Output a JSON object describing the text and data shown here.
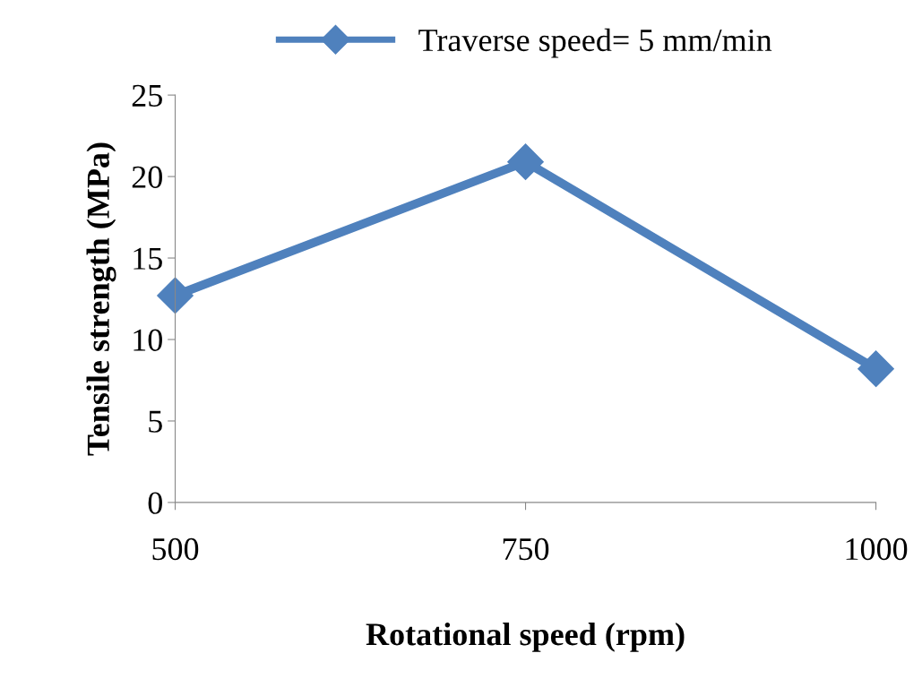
{
  "chart_data": {
    "type": "line",
    "xlabel": "Rotational speed (rpm)",
    "ylabel": "Tensile strength (MPa)",
    "categories": [
      "500",
      "750",
      "1000"
    ],
    "series": [
      {
        "name": "Traverse speed= 5 mm/min",
        "color": "#4f81bd",
        "values": [
          12.7,
          20.9,
          8.2
        ]
      }
    ],
    "ylim": [
      0,
      25
    ],
    "yticks": [
      0,
      5,
      10,
      15,
      20,
      25
    ],
    "grid": false,
    "legend": "top",
    "marker": "diamond",
    "line_style": "solid"
  }
}
